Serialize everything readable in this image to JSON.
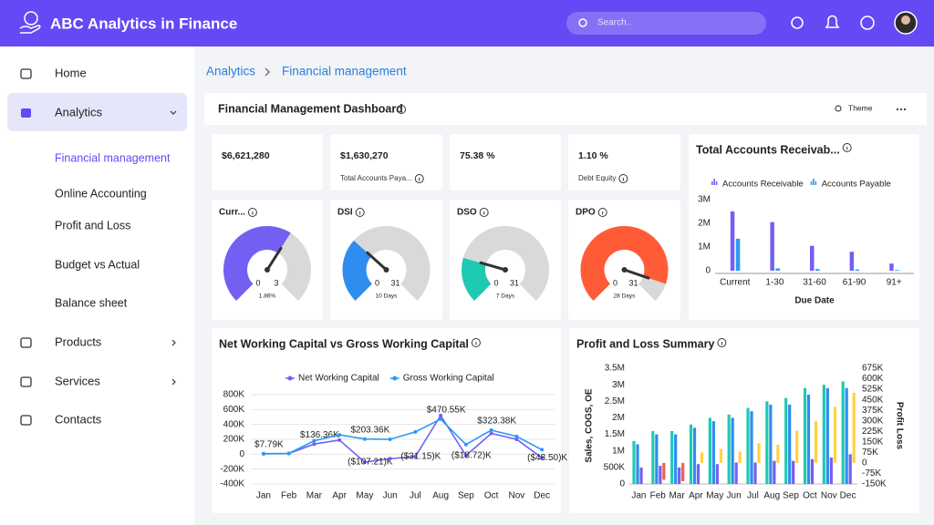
{
  "header": {
    "title": "ABC Analytics in Finance",
    "search_placeholder": "Search.."
  },
  "sidebar": {
    "items": [
      {
        "label": "Home"
      },
      {
        "label": "Analytics",
        "children": [
          "Financial management",
          "Online Accounting",
          "Profit and Loss",
          "Budget vs Actual",
          "Balance sheet"
        ]
      },
      {
        "label": "Products"
      },
      {
        "label": "Services"
      },
      {
        "label": "Contacts"
      }
    ]
  },
  "breadcrumb": [
    "Analytics",
    "Financial management"
  ],
  "dashboard": {
    "title": "Financial Management Dashboard",
    "theme": "Theme"
  },
  "kpis": [
    {
      "value": "$6,621,280"
    },
    {
      "value": "$1,630,270",
      "label": "Total Accounts Paya..."
    },
    {
      "value": "75.38 %"
    },
    {
      "value": "1.10 %",
      "label": "Debt Equity"
    }
  ],
  "chart_data": [
    {
      "type": "gauge",
      "title": "Curr...",
      "min": 0,
      "max": 3,
      "value": 1.86,
      "value_label": "1.86%",
      "color": "#7360f2"
    },
    {
      "type": "gauge",
      "title": "DSI",
      "min": 0,
      "max": 31,
      "value": 10,
      "value_label": "10 Days",
      "color": "#2f8df0"
    },
    {
      "type": "gauge",
      "title": "DSO",
      "min": 0,
      "max": 31,
      "value": 7,
      "value_label": "7 Days",
      "color": "#20c9b2"
    },
    {
      "type": "gauge",
      "title": "DPO",
      "min": 0,
      "max": 31,
      "value": 28,
      "value_label": "28 Days",
      "color": "#ff5b37"
    },
    {
      "type": "bar",
      "title": "Total Accounts Receivab...",
      "x_label": "Due Date",
      "categories": [
        "Current",
        "1-30",
        "31-60",
        "61-90",
        "91+"
      ],
      "series": [
        {
          "name": "Accounts Receivable",
          "color": "#7360f2",
          "values": [
            2500000,
            2050000,
            1050000,
            800000,
            300000
          ]
        },
        {
          "name": "Accounts Payable",
          "color": "#2b9af3",
          "values": [
            1350000,
            100000,
            70000,
            50000,
            30000
          ]
        }
      ],
      "ylim": [
        0,
        3000000
      ],
      "yticks": [
        0,
        {
          "value": 1000000,
          "label": "1M"
        },
        {
          "value": 2000000,
          "label": "2M"
        },
        {
          "value": 3000000,
          "label": "3M"
        }
      ],
      "legend": "top"
    },
    {
      "type": "line",
      "title": "Net Working Capital vs Gross Working Capital",
      "categories": [
        "Jan",
        "Feb",
        "Mar",
        "Apr",
        "May",
        "Jun",
        "Jul",
        "Aug",
        "Sep",
        "Oct",
        "Nov",
        "Dec"
      ],
      "series": [
        {
          "name": "Net Working Capital",
          "color": "#7360f2",
          "values": [
            7790,
            10000,
            136360,
            190000,
            -107210,
            -60000,
            -31150,
            520000,
            -18720,
            280000,
            200000,
            -48500
          ],
          "value_labels": [
            "$7.79K",
            null,
            "$136.36K",
            null,
            "($107.21)K",
            null,
            "($31.15)K",
            null,
            "($18.72)K",
            null,
            null,
            "($48.50)K"
          ]
        },
        {
          "name": "Gross Working Capital",
          "color": "#2b9af3",
          "values": [
            5000,
            10000,
            180000,
            260000,
            203360,
            200000,
            300000,
            470550,
            130000,
            323380,
            240000,
            60000
          ],
          "value_labels": [
            null,
            null,
            null,
            null,
            "$203.36K",
            null,
            null,
            "$470.55K",
            null,
            "$323.38K",
            null,
            null
          ]
        }
      ],
      "ylim": [
        -400000,
        800000
      ],
      "yticks": [
        {
          "value": -400000,
          "label": "-400K"
        },
        {
          "value": -200000,
          "label": "-200K"
        },
        0,
        {
          "value": 200000,
          "label": "200K"
        },
        {
          "value": 400000,
          "label": "400K"
        },
        {
          "value": 600000,
          "label": "600K"
        },
        {
          "value": 800000,
          "label": "800K"
        }
      ],
      "grid": true,
      "legend": "top"
    },
    {
      "type": "bar",
      "title": "Profit and Loss Summary",
      "y_label": "Sales, COGS, OE",
      "y2_label": "Profit Loss",
      "categories": [
        "Jan",
        "Feb",
        "Mar",
        "Apr",
        "May",
        "Jun",
        "Jul",
        "Aug",
        "Sep",
        "Oct",
        "Nov",
        "Dec"
      ],
      "series": [
        {
          "color": "#20c9b2",
          "values": [
            1300000,
            1600000,
            1600000,
            1800000,
            2000000,
            2100000,
            2300000,
            2500000,
            2600000,
            2900000,
            3000000,
            3100000
          ]
        },
        {
          "color": "#2f8df0",
          "values": [
            1200000,
            1500000,
            1500000,
            1700000,
            1900000,
            2000000,
            2200000,
            2400000,
            2400000,
            2700000,
            2900000,
            2900000
          ]
        },
        {
          "color": "#7360f2",
          "values": [
            500000,
            550000,
            500000,
            600000,
            600000,
            650000,
            650000,
            700000,
            700000,
            750000,
            800000,
            900000
          ]
        },
        {
          "color": "#ffd23f",
          "negative_color": "#f0614a",
          "axis": "y2",
          "values": [
            0,
            -120000,
            -130000,
            75000,
            100000,
            80000,
            140000,
            130000,
            230000,
            300000,
            400000,
            500000
          ]
        }
      ],
      "ylim": [
        0,
        3500000
      ],
      "yticks": [
        0,
        {
          "value": 500000,
          "label": "500K"
        },
        {
          "value": 1000000,
          "label": "1M"
        },
        {
          "value": 1500000,
          "label": "1.5M"
        },
        {
          "value": 2000000,
          "label": "2M"
        },
        {
          "value": 2500000,
          "label": "2.5M"
        },
        {
          "value": 3000000,
          "label": "3M"
        },
        {
          "value": 3500000,
          "label": "3.5M"
        }
      ],
      "y2lim": [
        -150000,
        675000
      ],
      "y2ticks": [
        {
          "value": -150000,
          "label": "-150K"
        },
        {
          "value": -75000,
          "label": "-75K"
        },
        0,
        {
          "value": 75000,
          "label": "75K"
        },
        {
          "value": 150000,
          "label": "150K"
        },
        {
          "value": 225000,
          "label": "225K"
        },
        {
          "value": 300000,
          "label": "300K"
        },
        {
          "value": 375000,
          "label": "375K"
        },
        {
          "value": 450000,
          "label": "450K"
        },
        {
          "value": 525000,
          "label": "525K"
        },
        {
          "value": 600000,
          "label": "600K"
        },
        {
          "value": 675000,
          "label": "675K"
        }
      ]
    }
  ]
}
